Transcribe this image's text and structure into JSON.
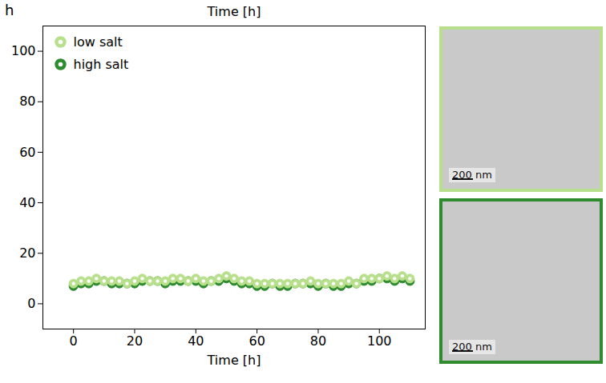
{
  "chart_data": {
    "type": "scatter",
    "panel_label": "h",
    "x_label": "Time [h]",
    "x2_label": "Time [h]",
    "xlim": [
      -10,
      115
    ],
    "xticks": [
      0,
      20,
      40,
      60,
      80,
      100
    ],
    "ylim": [
      -10,
      110
    ],
    "yticks": [
      0,
      20,
      40,
      60,
      80,
      100
    ],
    "grid": false,
    "legend": "top-left",
    "x": [
      0,
      2.5,
      5,
      7.5,
      10,
      12.5,
      15,
      17.5,
      20,
      22.5,
      25,
      27.5,
      30,
      32.5,
      35,
      37.5,
      40,
      42.5,
      45,
      47.5,
      50,
      52.5,
      55,
      57.5,
      60,
      62.5,
      65,
      67.5,
      70,
      72.5,
      75,
      77.5,
      80,
      82.5,
      85,
      87.5,
      90,
      92.5,
      95,
      97.5,
      100,
      102.5,
      105,
      107.5,
      110
    ],
    "series": [
      {
        "name": "low salt",
        "color": "#b8e08c",
        "marker": "ring",
        "values": [
          8,
          9,
          9,
          10,
          9,
          9,
          9,
          8,
          9,
          10,
          9,
          9,
          9,
          10,
          10,
          9,
          10,
          9,
          9,
          10,
          11,
          10,
          9,
          9,
          8,
          8,
          8,
          8,
          8,
          8,
          8,
          9,
          8,
          8,
          8,
          8,
          9,
          8,
          10,
          10,
          10,
          11,
          10,
          11,
          10
        ]
      },
      {
        "name": "high salt",
        "color": "#2e8b2e",
        "marker": "ring",
        "values": [
          7,
          8,
          8,
          9,
          9,
          8,
          8,
          8,
          8,
          9,
          9,
          9,
          8,
          9,
          9,
          9,
          9,
          8,
          9,
          9,
          10,
          9,
          8,
          8,
          7,
          7,
          8,
          7,
          7,
          8,
          8,
          8,
          7,
          8,
          7,
          7,
          8,
          8,
          9,
          9,
          10,
          10,
          9,
          10,
          9
        ]
      }
    ],
    "images": [
      {
        "series": "low salt",
        "scale_bar": "200 nm"
      },
      {
        "series": "high salt",
        "scale_bar": "200 nm"
      }
    ]
  }
}
